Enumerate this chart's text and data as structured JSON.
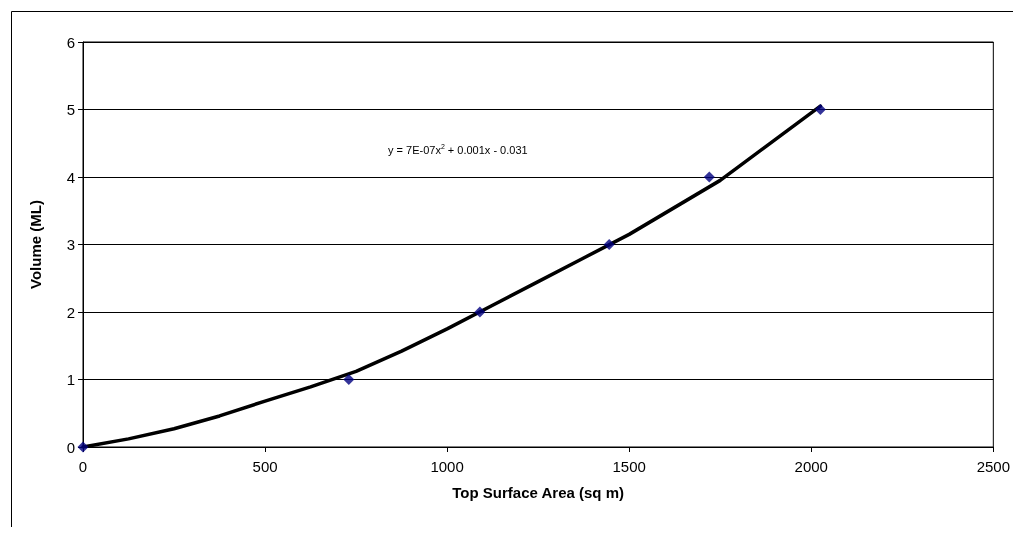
{
  "chart_data": {
    "type": "scatter",
    "xlabel": "Top Surface Area (sq m)",
    "ylabel": "Volume (ML)",
    "x": [
      0,
      730,
      1090,
      1445,
      1720,
      2025
    ],
    "series": [
      {
        "color": "#000080",
        "values": [
          0,
          1,
          2,
          3,
          4,
          5
        ]
      },
      {
        "type": "line",
        "color": "#000000",
        "x": [
          0,
          125,
          250,
          375,
          500,
          625,
          750,
          875,
          1000,
          1125,
          1250,
          1375,
          1500,
          1625,
          1750,
          1875,
          2025
        ],
        "values": [
          0,
          0.12,
          0.27,
          0.46,
          0.68,
          0.89,
          1.12,
          1.42,
          1.75,
          2.1,
          2.45,
          2.8,
          3.15,
          3.55,
          3.95,
          4.45,
          5.05
        ],
        "marker": "none"
      }
    ],
    "marker": "diamond",
    "line_style": "solid",
    "xlim": [
      0,
      2500
    ],
    "xticks": [
      0,
      500,
      1000,
      1500,
      2000,
      2500
    ],
    "ylim": [
      0,
      6
    ],
    "yticks": [
      0,
      1,
      2,
      3,
      4,
      5,
      6
    ],
    "grid": "y",
    "annotations": [
      "y = 7E-07x$^{2}$ + 0.001x - 0.031"
    ]
  }
}
